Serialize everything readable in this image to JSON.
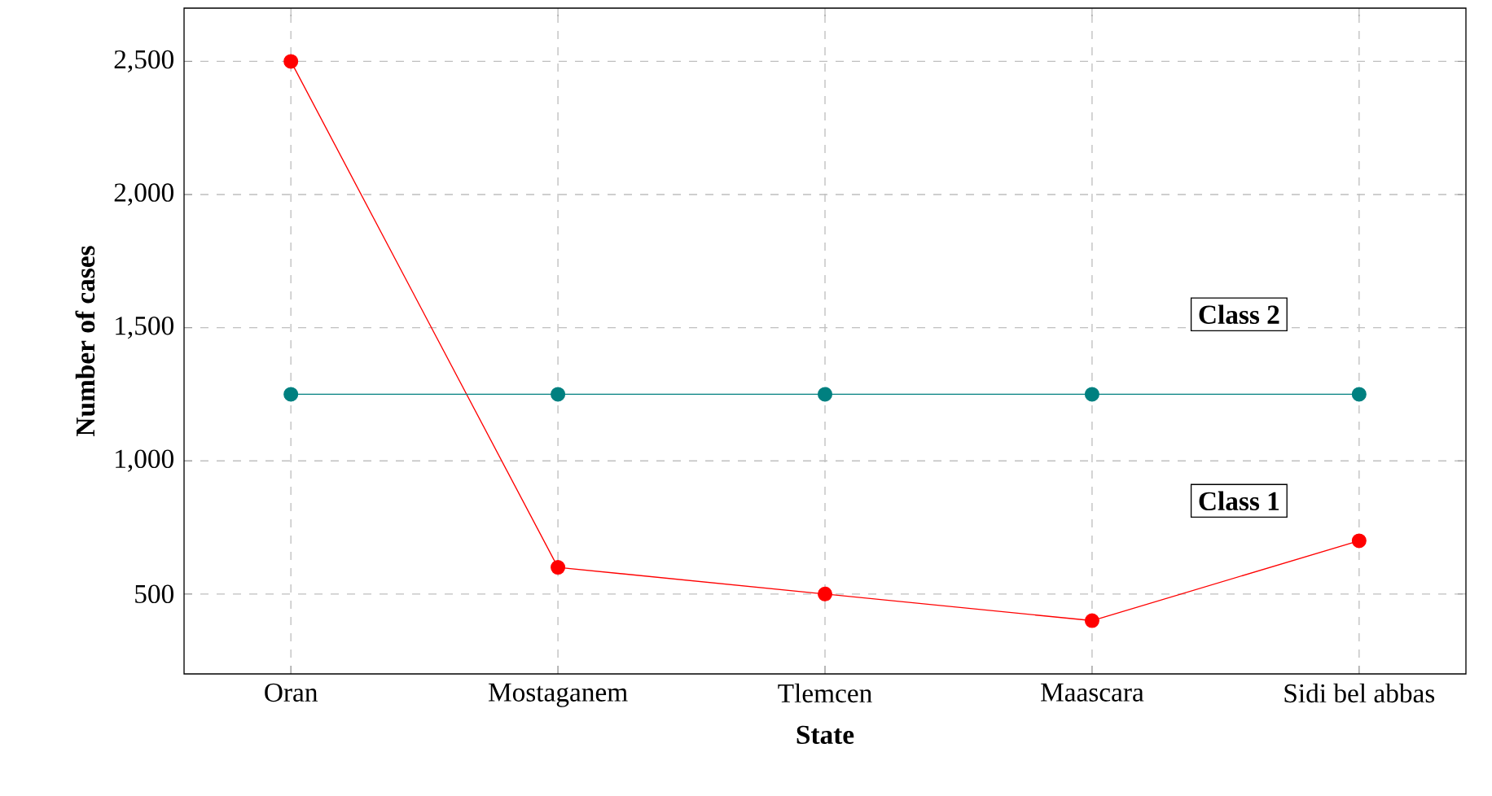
{
  "chart_data": {
    "type": "line",
    "xlabel": "State",
    "ylabel": "Number of cases",
    "categories": [
      "Oran",
      "Mostaganem",
      "Tlemcen",
      "Maascara",
      "Sidi bel abbas"
    ],
    "series": [
      {
        "color": "#ff0000",
        "values": [
          2500,
          600,
          500,
          400,
          700
        ]
      },
      {
        "color": "#008080",
        "values": [
          1250,
          1250,
          1250,
          1250,
          1250
        ]
      }
    ],
    "ylim": [
      200,
      2700
    ],
    "yticks": [
      500,
      {
        "value": 1000,
        "label": "1,000"
      },
      {
        "value": 1500,
        "label": "1,500"
      },
      {
        "value": 2000,
        "label": "2,000"
      },
      {
        "value": 2500,
        "label": "2,500"
      }
    ],
    "annotations": [
      "Class 2",
      "Class 1"
    ],
    "grid": true,
    "marker": "circle",
    "line_style": "solid"
  }
}
